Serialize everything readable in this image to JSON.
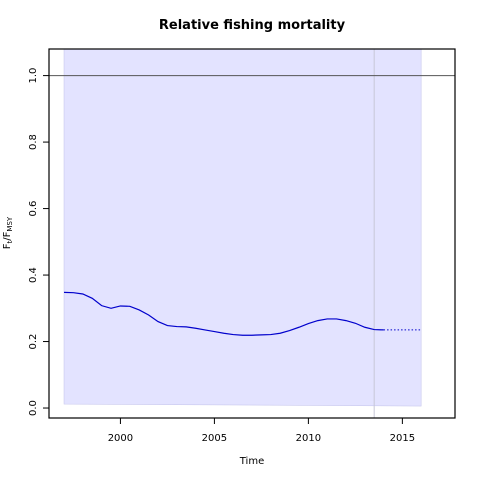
{
  "chart_data": {
    "type": "line",
    "title": "Relative fishing mortality",
    "xlabel": "Time",
    "ylabel": {
      "main": "F",
      "sub1": "t",
      "sep": "/F",
      "sub2": "MSY"
    },
    "xlim": [
      1996.2,
      2017.8
    ],
    "ylim": [
      -0.03,
      1.08
    ],
    "xticks": [
      2000,
      2005,
      2010,
      2015
    ],
    "yticks": [
      0.0,
      0.2,
      0.4,
      0.6,
      0.8,
      1.0
    ],
    "reference_line_y": 1.0,
    "vertical_line_x": 2013.5,
    "confidence_band": {
      "x": [
        1997.0,
        2016.0
      ],
      "upper": [
        1.08,
        1.08
      ],
      "lower": [
        0.012,
        0.006
      ]
    },
    "series": [
      {
        "style": "solid",
        "x": [
          1997.0,
          1997.5,
          1998.0,
          1998.5,
          1999.0,
          1999.5,
          2000.0,
          2000.5,
          2001.0,
          2001.5,
          2002.0,
          2002.5,
          2003.0,
          2003.5,
          2004.0,
          2004.5,
          2005.0,
          2005.5,
          2006.0,
          2006.5,
          2007.0,
          2007.5,
          2008.0,
          2008.5,
          2009.0,
          2009.5,
          2010.0,
          2010.5,
          2011.0,
          2011.5,
          2012.0,
          2012.5,
          2013.0,
          2013.5,
          2014.0
        ],
        "y": [
          0.348,
          0.347,
          0.343,
          0.33,
          0.308,
          0.3,
          0.307,
          0.306,
          0.295,
          0.28,
          0.26,
          0.248,
          0.245,
          0.244,
          0.24,
          0.235,
          0.23,
          0.225,
          0.221,
          0.219,
          0.219,
          0.22,
          0.221,
          0.225,
          0.233,
          0.243,
          0.254,
          0.263,
          0.268,
          0.268,
          0.263,
          0.255,
          0.243,
          0.236,
          0.235
        ]
      },
      {
        "style": "dotted",
        "x": [
          2014.0,
          2016.0
        ],
        "y": [
          0.235,
          0.235
        ]
      }
    ],
    "colors": {
      "band": "#e3e3ff",
      "band_edge": "#c9c9ee",
      "line": "#0000cc",
      "reference": "#555555",
      "vline": "#c7c7d6"
    }
  }
}
